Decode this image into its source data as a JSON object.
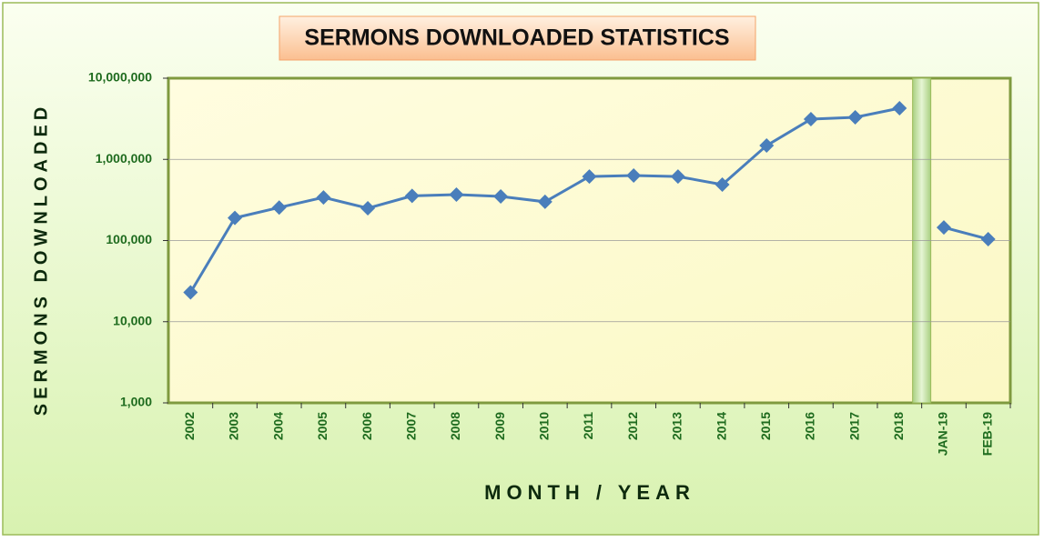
{
  "chart_data": {
    "type": "line",
    "title": "SERMONS DOWNLOADED STATISTICS",
    "x_label": "MONTH / YEAR",
    "y_label": "SERMONS DOWNLOADED",
    "categories": [
      "2002",
      "2003",
      "2004",
      "2005",
      "2006",
      "2007",
      "2008",
      "2009",
      "2010",
      "2011",
      "2012",
      "2013",
      "2014",
      "2015",
      "2016",
      "2017",
      "2018",
      "JAN-19",
      "FEB-19"
    ],
    "series": [
      {
        "color": "#4a7ebb",
        "values": [
          23000,
          190000,
          255000,
          340000,
          250000,
          355000,
          368000,
          349000,
          300000,
          615000,
          633000,
          615000,
          489000,
          1480000,
          3130000,
          3300000,
          4270000,
          null,
          null
        ]
      },
      {
        "color": "#4a7ebb",
        "values": [
          null,
          null,
          null,
          null,
          null,
          null,
          null,
          null,
          null,
          null,
          null,
          null,
          null,
          null,
          null,
          null,
          null,
          145000,
          104000
        ]
      }
    ],
    "ylim": [
      1000,
      10000000
    ],
    "yticks": [
      {
        "value": 1000,
        "label": "1,000"
      },
      {
        "value": 10000,
        "label": "10,000"
      },
      {
        "value": 100000,
        "label": "100,000"
      },
      {
        "value": 1000000,
        "label": "1,000,000"
      },
      {
        "value": 10000000,
        "label": "10,000,000"
      }
    ],
    "log_scale": true,
    "grid": true
  }
}
